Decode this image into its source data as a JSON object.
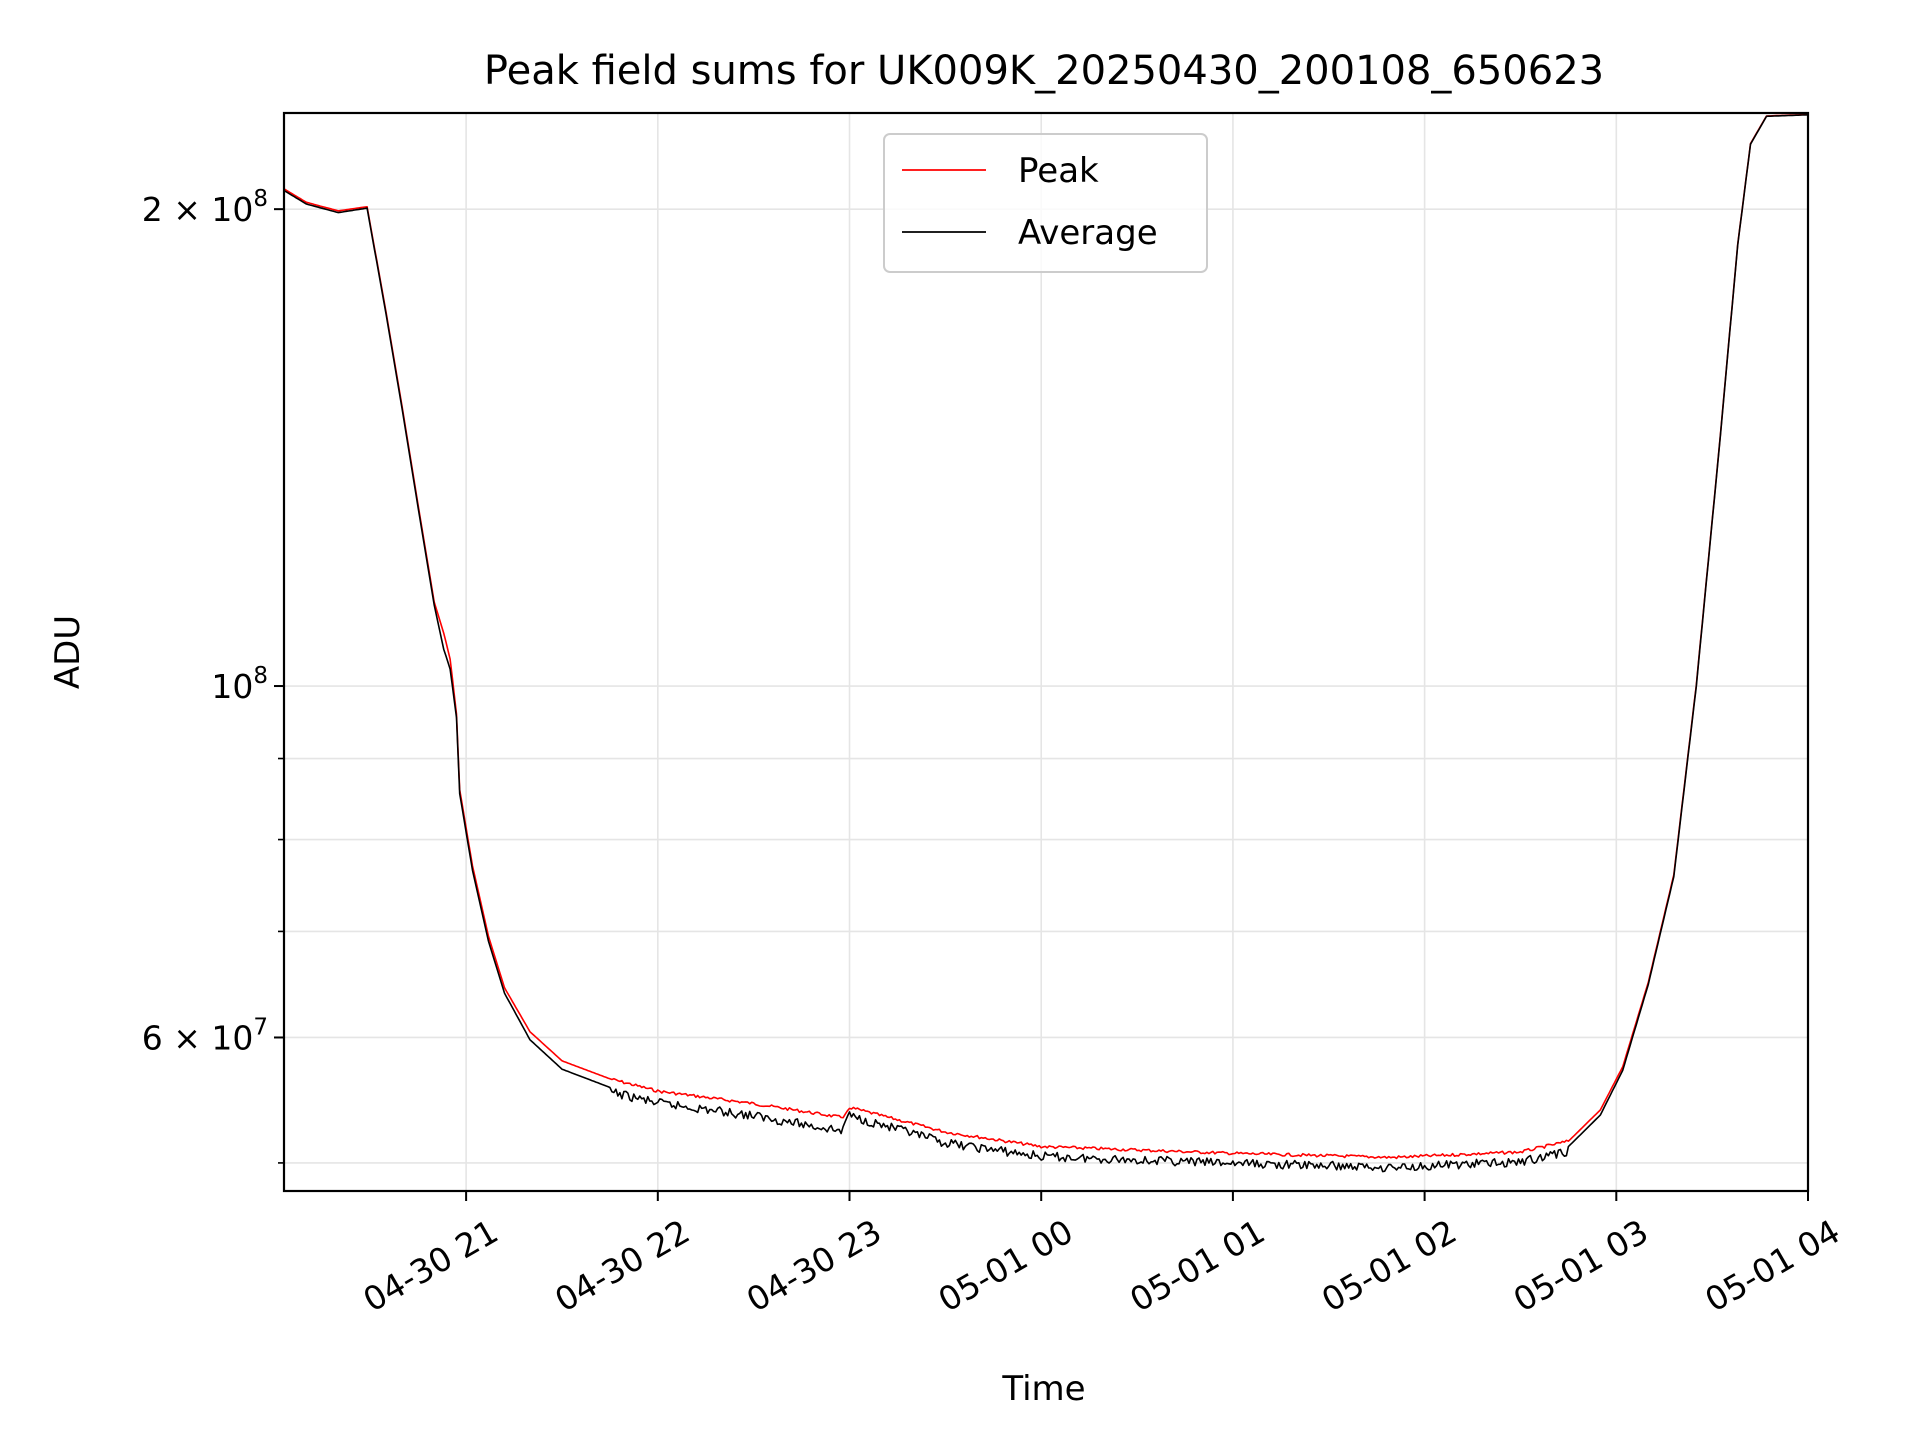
{
  "chart_data": {
    "type": "line",
    "title": "Peak field sums for UK009K_20250430_200108_650623",
    "xlabel": "Time",
    "ylabel": "ADU",
    "y_scale": "log",
    "grid": true,
    "legend_position": "top-center",
    "xlim": [
      "2025-04-30 20:03",
      "2025-05-01 04:00"
    ],
    "ylim": [
      48000000,
      230000000
    ],
    "x_ticks": [
      {
        "value": "2025-04-30 21:00",
        "label": "04-30 21"
      },
      {
        "value": "2025-04-30 22:00",
        "label": "04-30 22"
      },
      {
        "value": "2025-04-30 23:00",
        "label": "04-30 23"
      },
      {
        "value": "2025-05-01 00:00",
        "label": "05-01 00"
      },
      {
        "value": "2025-05-01 01:00",
        "label": "05-01 01"
      },
      {
        "value": "2025-05-01 02:00",
        "label": "05-01 02"
      },
      {
        "value": "2025-05-01 03:00",
        "label": "05-01 03"
      },
      {
        "value": "2025-05-01 04:00",
        "label": "05-01 04"
      }
    ],
    "y_ticks_major": [
      {
        "value": 60000000,
        "base": "6 × 10",
        "exp": "7"
      },
      {
        "value": 100000000,
        "base": "10",
        "exp": "8"
      },
      {
        "value": 200000000,
        "base": "2 × 10",
        "exp": "8"
      }
    ],
    "y_ticks_minor": [
      50000000,
      70000000,
      80000000,
      90000000
    ],
    "series": [
      {
        "name": "Peak",
        "color": "#ff0000",
        "points": [
          [
            "2025-04-30 20:03",
            206000000
          ],
          [
            "2025-04-30 20:10",
            202000000
          ],
          [
            "2025-04-30 20:20",
            199500000
          ],
          [
            "2025-04-30 20:29",
            200700000
          ],
          [
            "2025-04-30 20:35",
            172000000
          ],
          [
            "2025-04-30 20:40",
            150000000
          ],
          [
            "2025-04-30 20:45",
            130000000
          ],
          [
            "2025-04-30 20:50",
            113000000
          ],
          [
            "2025-04-30 20:53",
            108000000
          ],
          [
            "2025-04-30 20:55",
            104000000
          ],
          [
            "2025-04-30 20:57",
            96000000
          ],
          [
            "2025-04-30 20:58",
            86000000
          ],
          [
            "2025-04-30 21:02",
            77000000
          ],
          [
            "2025-04-30 21:07",
            69500000
          ],
          [
            "2025-04-30 21:12",
            64500000
          ],
          [
            "2025-04-30 21:20",
            60500000
          ],
          [
            "2025-04-30 21:30",
            58000000
          ],
          [
            "2025-04-30 21:45",
            56500000
          ],
          [
            "2025-04-30 22:00",
            55500000
          ],
          [
            "2025-04-30 22:30",
            54500000
          ],
          [
            "2025-04-30 22:58",
            53400000
          ],
          [
            "2025-04-30 23:00",
            54200000
          ],
          [
            "2025-04-30 23:30",
            52300000
          ],
          [
            "2025-05-01 00:00",
            51200000
          ],
          [
            "2025-05-01 01:00",
            50700000
          ],
          [
            "2025-05-01 01:50",
            50400000
          ],
          [
            "2025-05-01 02:30",
            50800000
          ],
          [
            "2025-05-01 02:45",
            51600000
          ],
          [
            "2025-05-01 02:55",
            54000000
          ],
          [
            "2025-05-01 03:02",
            57500000
          ],
          [
            "2025-05-01 03:10",
            65000000
          ],
          [
            "2025-05-01 03:18",
            76000000
          ],
          [
            "2025-05-01 03:25",
            100000000
          ],
          [
            "2025-05-01 03:32",
            140000000
          ],
          [
            "2025-05-01 03:38",
            190000000
          ],
          [
            "2025-05-01 03:42",
            220000000
          ],
          [
            "2025-05-01 03:47",
            229000000
          ],
          [
            "2025-05-01 04:00",
            229500000
          ]
        ]
      },
      {
        "name": "Average",
        "color": "#000000",
        "points": [
          [
            "2025-04-30 20:03",
            205500000
          ],
          [
            "2025-04-30 20:10",
            201500000
          ],
          [
            "2025-04-30 20:20",
            199000000
          ],
          [
            "2025-04-30 20:29",
            200300000
          ],
          [
            "2025-04-30 20:35",
            171500000
          ],
          [
            "2025-04-30 20:40",
            149500000
          ],
          [
            "2025-04-30 20:45",
            129500000
          ],
          [
            "2025-04-30 20:50",
            112500000
          ],
          [
            "2025-04-30 20:53",
            105500000
          ],
          [
            "2025-04-30 20:55",
            102500000
          ],
          [
            "2025-04-30 20:57",
            95500000
          ],
          [
            "2025-04-30 20:58",
            85500000
          ],
          [
            "2025-04-30 21:02",
            76500000
          ],
          [
            "2025-04-30 21:07",
            69000000
          ],
          [
            "2025-04-30 21:12",
            64000000
          ],
          [
            "2025-04-30 21:20",
            59800000
          ],
          [
            "2025-04-30 21:30",
            57300000
          ],
          [
            "2025-04-30 21:45",
            55800000
          ],
          [
            "2025-04-30 22:00",
            54900000
          ],
          [
            "2025-04-30 22:30",
            53900000
          ],
          [
            "2025-04-30 22:58",
            52700000
          ],
          [
            "2025-04-30 23:00",
            53900000
          ],
          [
            "2025-04-30 23:30",
            51800000
          ],
          [
            "2025-05-01 00:00",
            50800000
          ],
          [
            "2025-05-01 01:00",
            50300000
          ],
          [
            "2025-05-01 01:50",
            50000000
          ],
          [
            "2025-05-01 02:30",
            50400000
          ],
          [
            "2025-05-01 02:45",
            51200000
          ],
          [
            "2025-05-01 02:55",
            53600000
          ],
          [
            "2025-05-01 03:02",
            57200000
          ],
          [
            "2025-05-01 03:10",
            64800000
          ],
          [
            "2025-05-01 03:18",
            75800000
          ],
          [
            "2025-05-01 03:25",
            99800000
          ],
          [
            "2025-05-01 03:32",
            139800000
          ],
          [
            "2025-05-01 03:38",
            189800000
          ],
          [
            "2025-05-01 03:42",
            219800000
          ],
          [
            "2025-05-01 03:47",
            228900000
          ],
          [
            "2025-05-01 04:00",
            229400000
          ]
        ]
      }
    ]
  }
}
